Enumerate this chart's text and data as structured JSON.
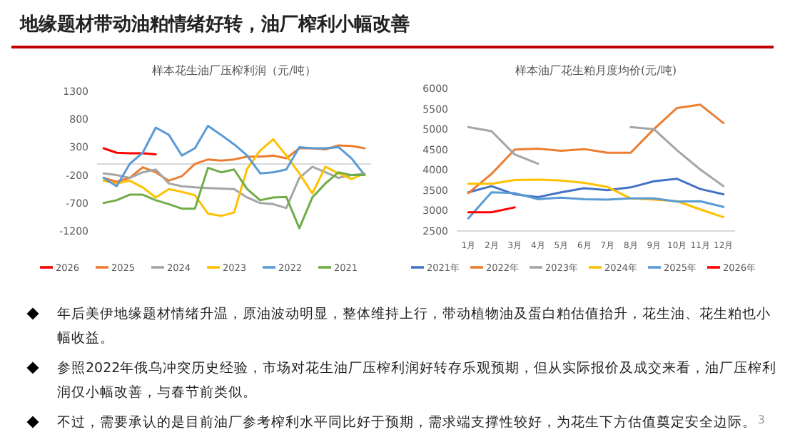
{
  "chart_data": [
    {
      "type": "other",
      "title": "地缘题材带动油粕情绪好转，油厂榨利小幅改善",
      "annotations": [
        "年后美伊地缘题材情绪升温，原油波动明显，整体维持上行，带动植物油及蛋白粕估值抬升，花生油、花生粕也小幅收益。",
        "参照2022年俄乌冲突历史经验，市场对花生油厂压榨利润好转存乐观预期，但从实际报价及成交来看，油厂压榨利润仅小幅改善，与春节前类似。",
        "不过，需要承认的是目前油厂参考榨利水平同比好于预期，需求端支撑性较好，为花生下方估值奠定安全边际。",
        "3"
      ]
    },
    {
      "type": "line",
      "title": "样本花生油厂压榨利润（元/吨）",
      "tick_labels": "y",
      "legend": "bottom",
      "categories": [
        null,
        null,
        null,
        null,
        null,
        null,
        null,
        null,
        null,
        null,
        null,
        null,
        null,
        null,
        null,
        null,
        null,
        null,
        null,
        null,
        null
      ],
      "ylim": [
        -1200,
        1300
      ],
      "yticks": [
        -1200,
        -700,
        -200,
        300,
        800,
        1300
      ],
      "series": [
        {
          "name": "2026",
          "color": "#ff0000",
          "values": [
            280,
            200,
            190,
            190,
            170,
            null,
            null,
            null,
            null,
            null,
            null,
            null,
            null,
            null,
            null,
            null,
            null,
            null,
            null,
            null,
            null
          ]
        },
        {
          "name": "2025",
          "color": "#ed7d31",
          "values": [
            -250,
            -320,
            -250,
            -60,
            -150,
            -300,
            -220,
            0,
            80,
            60,
            80,
            130,
            130,
            150,
            100,
            280,
            280,
            260,
            330,
            320,
            280
          ]
        },
        {
          "name": "2024",
          "color": "#a5a5a5",
          "values": [
            -170,
            -200,
            -250,
            -150,
            -100,
            -350,
            -400,
            -420,
            -430,
            -440,
            -450,
            -600,
            -700,
            -720,
            -790,
            -250,
            -50,
            -150,
            -250,
            -200,
            -180
          ]
        },
        {
          "name": "2023",
          "color": "#ffc000",
          "values": [
            -300,
            -350,
            -300,
            -420,
            -600,
            -450,
            -500,
            -560,
            -890,
            -930,
            -870,
            -90,
            240,
            440,
            150,
            -170,
            -530,
            -50,
            -170,
            -270,
            -170
          ]
        },
        {
          "name": "2022",
          "color": "#5b9bd5",
          "values": [
            -250,
            -400,
            0,
            200,
            650,
            520,
            150,
            280,
            680,
            520,
            350,
            150,
            -170,
            -150,
            -100,
            300,
            280,
            280,
            300,
            100,
            -200
          ]
        },
        {
          "name": "2021",
          "color": "#70ad47",
          "values": [
            -700,
            -650,
            -550,
            -550,
            -650,
            -720,
            -800,
            -800,
            -70,
            -150,
            -100,
            -450,
            -650,
            -600,
            -590,
            -1150,
            -600,
            -350,
            -150,
            -200,
            -200
          ]
        }
      ]
    },
    {
      "type": "line",
      "title": "样本油厂花生粕月度均价(元/吨)",
      "legend": "bottom",
      "categories": [
        "1月",
        "2月",
        "3月",
        "4月",
        "5月",
        "6月",
        "7月",
        "8月",
        "9月",
        "10月",
        "11月",
        "12月"
      ],
      "ylim": [
        2500,
        6000
      ],
      "yticks": [
        2500,
        3000,
        3500,
        4000,
        4500,
        5000,
        5500,
        6000
      ],
      "series": [
        {
          "name": "2021年",
          "color": "#4472c4",
          "values": [
            3450,
            3600,
            3400,
            3330,
            3450,
            3550,
            3500,
            3570,
            3720,
            3780,
            3530,
            3400
          ]
        },
        {
          "name": "2022年",
          "color": "#ed7d31",
          "values": [
            3430,
            3900,
            4500,
            4520,
            4470,
            4510,
            4420,
            4420,
            5000,
            5520,
            5600,
            5150
          ]
        },
        {
          "name": "2023年",
          "color": "#a5a5a5",
          "values": [
            5050,
            4950,
            4380,
            4150,
            null,
            null,
            null,
            5050,
            5000,
            4480,
            4010,
            3600
          ]
        },
        {
          "name": "2024年",
          "color": "#ffc000",
          "values": [
            3660,
            3660,
            3750,
            3760,
            3740,
            3680,
            3580,
            3300,
            3270,
            3230,
            3030,
            2840
          ]
        },
        {
          "name": "2025年",
          "color": "#5b9bd5",
          "values": [
            2810,
            3450,
            3430,
            3280,
            3320,
            3280,
            3270,
            3300,
            3300,
            3220,
            3230,
            3090
          ]
        },
        {
          "name": "2026年",
          "color": "#ff0000",
          "values": [
            2960,
            2960,
            3080,
            null,
            null,
            null,
            null,
            null,
            null,
            null,
            null,
            null
          ]
        }
      ]
    }
  ]
}
